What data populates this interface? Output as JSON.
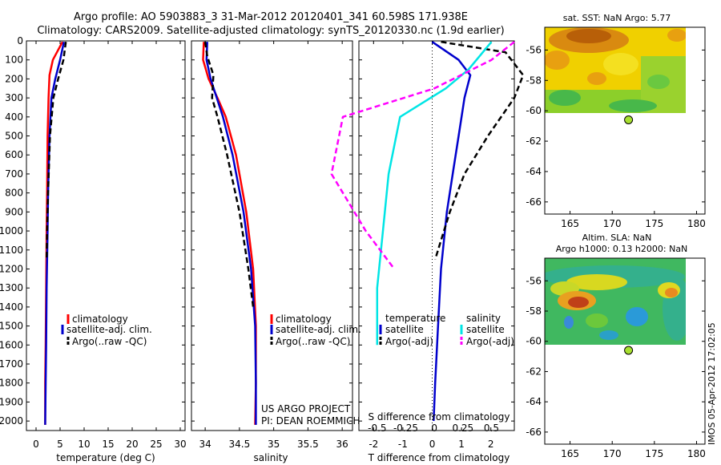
{
  "header": {
    "line1": "Argo profile: AO 5903883_3 31-Mar-2012 20120401_341 60.598S 171.938E",
    "line2": "Climatology: CARS2009. Satellite-adjusted climatology: synTS_20120330.nc (1.9d earlier)"
  },
  "colors": {
    "climatology": "#ff0000",
    "satellite": "#0000cc",
    "argo": "#000000",
    "salinity_satellite": "#00e5e5",
    "salinity_argo": "#ff00ff"
  },
  "chart_data": [
    {
      "id": "temperature",
      "type": "line",
      "xlabel": "temperature (deg C)",
      "ylabel": "",
      "xlim": [
        -2,
        31
      ],
      "ylim": [
        2050,
        0
      ],
      "x_ticks": [
        0,
        5,
        10,
        15,
        20,
        25,
        30
      ],
      "x_tick_labels": [
        "0",
        "5",
        "10",
        "15",
        "20",
        "25",
        "30"
      ],
      "y_ticks": [
        0,
        100,
        200,
        300,
        400,
        500,
        600,
        700,
        800,
        900,
        1000,
        1100,
        1200,
        1300,
        1400,
        1500,
        1600,
        1700,
        1800,
        1900,
        2000
      ],
      "y_tick_labels": [
        "0",
        "100",
        "200",
        "300",
        "400",
        "500",
        "600",
        "700",
        "800",
        "900",
        "1000",
        "1100",
        "1200",
        "1300",
        "1400",
        "1500",
        "1600",
        "1700",
        "1800",
        "1900",
        "2000"
      ],
      "legend": [
        "climatology",
        "satellite-adj. clim.",
        "Argo(..raw -QC)"
      ],
      "series": [
        {
          "name": "climatology",
          "style": "solid",
          "color": "#ff0000",
          "x": [
            5.5,
            3.5,
            2.8,
            2.6,
            2.4,
            2.3,
            2.2,
            2.1,
            2.0,
            1.9,
            1.9
          ],
          "y": [
            5,
            100,
            180,
            300,
            500,
            800,
            1000,
            1300,
            1600,
            1800,
            2020
          ]
        },
        {
          "name": "satellite-adj. clim.",
          "style": "solid",
          "color": "#0000cc",
          "x": [
            5.8,
            5.0,
            4.0,
            3.2,
            2.8,
            2.5,
            2.4,
            2.2,
            2.1,
            2.0,
            1.9
          ],
          "y": [
            5,
            100,
            200,
            300,
            500,
            800,
            1000,
            1300,
            1600,
            1800,
            2020
          ]
        },
        {
          "name": "Argo(..raw -QC)",
          "style": "dashed",
          "color": "#000000",
          "x": [
            6.2,
            5.7,
            4.6,
            3.6,
            2.9,
            2.5,
            2.3,
            2.2
          ],
          "y": [
            5,
            100,
            200,
            300,
            500,
            800,
            1000,
            1150
          ]
        }
      ]
    },
    {
      "id": "salinity",
      "type": "line",
      "xlabel": "salinity",
      "ylabel": "",
      "xlim": [
        33.8,
        36.15
      ],
      "ylim": [
        2050,
        0
      ],
      "x_ticks": [
        34,
        34.5,
        35,
        35.5,
        36
      ],
      "x_tick_labels": [
        "34",
        "34.5",
        "35",
        "35.5",
        "36"
      ],
      "legend": [
        "climatology",
        "satellite-adj. clim.",
        "Argo(..raw -QC)"
      ],
      "annotation": [
        "US ARGO PROJECT",
        "PI: DEAN ROEMMICH"
      ],
      "series": [
        {
          "name": "climatology",
          "style": "solid",
          "color": "#ff0000",
          "x": [
            33.98,
            33.97,
            34.05,
            34.18,
            34.3,
            34.45,
            34.6,
            34.7,
            34.74,
            34.74,
            34.73
          ],
          "y": [
            5,
            100,
            200,
            300,
            400,
            600,
            900,
            1200,
            1500,
            1800,
            2020
          ]
        },
        {
          "name": "satellite-adj. clim.",
          "style": "solid",
          "color": "#0000cc",
          "x": [
            34.03,
            34.02,
            34.08,
            34.17,
            34.26,
            34.4,
            34.56,
            34.67,
            34.73,
            34.74,
            34.74
          ],
          "y": [
            5,
            100,
            200,
            300,
            400,
            600,
            900,
            1200,
            1500,
            1800,
            2020
          ]
        },
        {
          "name": "Argo(..raw -QC)",
          "style": "dashed",
          "color": "#000000",
          "x": [
            34.0,
            34.03,
            34.12,
            34.1,
            34.18,
            34.32,
            34.5,
            34.63,
            34.7
          ],
          "y": [
            5,
            80,
            180,
            300,
            400,
            600,
            900,
            1200,
            1400
          ]
        }
      ]
    },
    {
      "id": "differences",
      "type": "line",
      "xlabel": "T difference from climatology",
      "ylabel": "",
      "top_label": "S difference from climatology",
      "xlim": [
        -2.5,
        2.8
      ],
      "ylim": [
        2050,
        0
      ],
      "x_ticks": [
        -2,
        -1,
        0,
        1,
        2
      ],
      "x_tick_labels": [
        "-2",
        "-1",
        "0",
        "1",
        "2"
      ],
      "s_ticks": [
        -0.5,
        -0.25,
        0,
        0.25,
        0.5
      ],
      "s_tick_labels": [
        "-0.5",
        "-0.25",
        "0",
        "0.25",
        "0.5"
      ],
      "legend_temperature": {
        "title": "temperature",
        "items": [
          "satellite",
          "Argo(-adj)"
        ]
      },
      "legend_salinity": {
        "title": "salinity",
        "items": [
          "satellite",
          "Argo(-adj)"
        ]
      },
      "series": [
        {
          "name": "satellite",
          "style": "solid",
          "color": "#0000cc",
          "x": [
            0.0,
            0.9,
            1.3,
            1.1,
            0.9,
            0.7,
            0.5,
            0.3,
            0.2,
            0.1,
            0.05
          ],
          "y": [
            5,
            100,
            180,
            300,
            500,
            700,
            900,
            1200,
            1500,
            1800,
            2000
          ]
        },
        {
          "name": "Argo(-adj)",
          "style": "dashed",
          "color": "#000000",
          "x": [
            0.3,
            2.5,
            3.1,
            2.8,
            1.9,
            1.1,
            0.6,
            0.3,
            0.1
          ],
          "y": [
            5,
            60,
            180,
            300,
            500,
            700,
            900,
            1050,
            1150
          ]
        },
        {
          "name": "satellite",
          "style": "solid",
          "color": "#00e5e5",
          "x": [
            0.5,
            0.3,
            0.1,
            -0.3,
            -0.4,
            -0.45,
            -0.5,
            -0.5
          ],
          "y": [
            5,
            150,
            250,
            400,
            700,
            1000,
            1300,
            1600
          ]
        },
        {
          "name": "Argo(-adj)",
          "style": "dashed",
          "color": "#ff00ff",
          "x": [
            0.7,
            0.5,
            0.0,
            -0.8,
            -0.9,
            -0.6,
            -0.35
          ],
          "y": [
            5,
            100,
            250,
            400,
            700,
            1000,
            1200
          ]
        }
      ]
    },
    {
      "id": "map_sst",
      "type": "heatmap",
      "title": "sat. SST: NaN Argo: 5.77",
      "xlim": [
        162,
        181
      ],
      "ylim": [
        -66.8,
        -54.5
      ],
      "x_ticks": [
        165,
        170,
        175,
        180
      ],
      "x_tick_labels": [
        "165",
        "170",
        "175",
        "180"
      ],
      "y_ticks": [
        -56,
        -58,
        -60,
        -62,
        -64,
        -66
      ],
      "y_tick_labels": [
        "-56",
        "-58",
        "-60",
        "-62",
        "-64",
        "-66"
      ],
      "point": {
        "lon": 171.938,
        "lat": -60.598
      }
    },
    {
      "id": "map_sla",
      "type": "heatmap",
      "title": "Altim. SLA: NaN",
      "subtitle": "Argo h1000: 0.13 h2000: NaN",
      "xlim": [
        162,
        181
      ],
      "ylim": [
        -66.8,
        -54.5
      ],
      "x_ticks": [
        165,
        170,
        175,
        180
      ],
      "x_tick_labels": [
        "165",
        "170",
        "175",
        "180"
      ],
      "y_ticks": [
        -56,
        -58,
        -60,
        -62,
        -64,
        -66
      ],
      "y_tick_labels": [
        "-56",
        "-58",
        "-60",
        "-62",
        "-64",
        "-66"
      ],
      "point": {
        "lon": 171.938,
        "lat": -60.598
      }
    }
  ],
  "footer": {
    "stamp": "IMOS 05-Apr-2012 17:02:05"
  }
}
